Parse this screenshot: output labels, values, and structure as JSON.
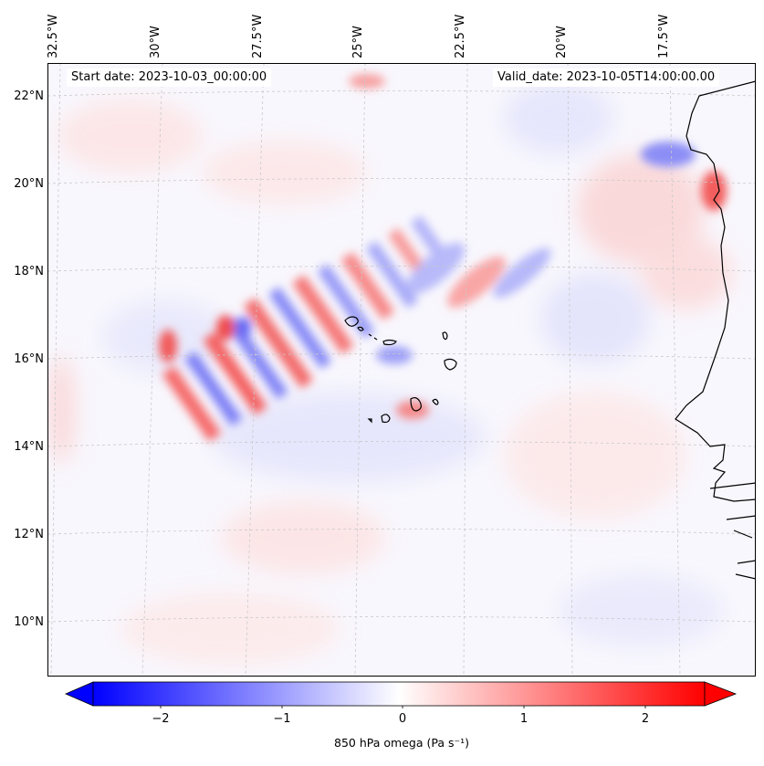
{
  "map": {
    "start_date": "Start date: 2023-10-03_00:00:00",
    "valid_date": "Valid_date: 2023-10-05T14:00:00.00",
    "lon_ticks": [
      "32.5°W",
      "30°W",
      "27.5°W",
      "25°W",
      "22.5°W",
      "20°W",
      "17.5°W"
    ],
    "lat_ticks": [
      "22°N",
      "20°N",
      "18°N",
      "16°N",
      "14°N",
      "12°N",
      "10°N"
    ],
    "extent": {
      "lon_min": -33.0,
      "lon_max": -15.5,
      "lat_min": 8.8,
      "lat_max": 22.8
    },
    "features": [
      "Cape Verde islands",
      "West African coastline (Mauritania, Senegal, Gambia, Guinea-Bissau)"
    ]
  },
  "colorbar": {
    "label": "850 hPa omega (Pa s⁻¹)",
    "tick_labels": [
      "−2",
      "−1",
      "0",
      "1",
      "2"
    ],
    "range": [
      -2.5,
      2.5
    ],
    "cmap": "bwr",
    "colors": {
      "low": "#0000ff",
      "mid": "#ffffff",
      "high": "#ff0000"
    }
  }
}
